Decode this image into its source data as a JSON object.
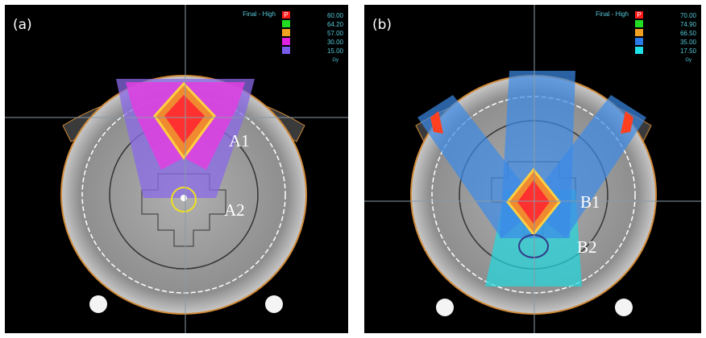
{
  "panels": [
    {
      "label": "(a)",
      "legend_title": "Final - High",
      "prescription_mark": "P",
      "unit": "Gy",
      "legend": [
        {
          "value": "60.00",
          "color": "#ff1a1a"
        },
        {
          "value": "64.20",
          "color": "#22dd22"
        },
        {
          "value": "57.00",
          "color": "#f0a020"
        },
        {
          "value": "30.00",
          "color": "#e020e0"
        },
        {
          "value": "15.00",
          "color": "#7a5ae8"
        }
      ],
      "annotations": [
        "A1",
        "A2"
      ]
    },
    {
      "label": "(b)",
      "legend_title": "Final - High",
      "prescription_mark": "P",
      "unit": "Gy",
      "legend": [
        {
          "value": "70.00",
          "color": "#ff1a1a"
        },
        {
          "value": "74.90",
          "color": "#22dd22"
        },
        {
          "value": "66.50",
          "color": "#f0a020"
        },
        {
          "value": "35.00",
          "color": "#2a7ae8"
        },
        {
          "value": "17.50",
          "color": "#20e0e8"
        }
      ],
      "annotations": [
        "B1",
        "B2"
      ]
    }
  ]
}
